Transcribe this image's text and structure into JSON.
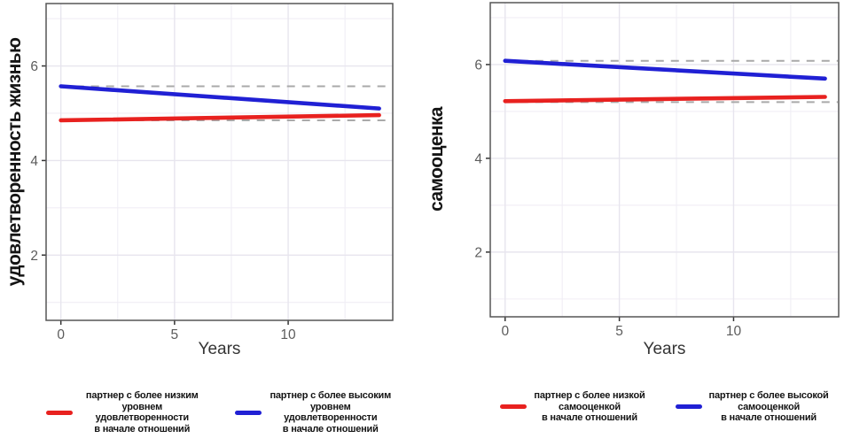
{
  "style": {
    "background": "#ffffff",
    "grid_major": "#e7e5ee",
    "grid_minor": "#f0eef5",
    "panel_border": "#565656",
    "ref_line": "#a9a9a9",
    "tick": "#333333",
    "tick_label": "#5c5c5c",
    "red": "#e8211f",
    "blue": "#2020d4"
  },
  "chart_data": [
    {
      "type": "line",
      "ylabel": "удовлетворенность жизнью",
      "xlabel": "Years",
      "x_ticks": [
        0,
        5,
        10
      ],
      "x_minor_ticks": [
        2.5,
        7.5,
        12.5
      ],
      "y_ticks": [
        2,
        4,
        6
      ],
      "y_minor_ticks": [
        1,
        3,
        5,
        7
      ],
      "xlim": [
        -0.65,
        14.6
      ],
      "ylim": [
        0.62,
        7.32
      ],
      "grid": true,
      "legend_position": "bottom",
      "series": [
        {
          "name": "партнер с более низким уровнем удовлетворенности в начале отношений",
          "color": "#e8211f",
          "x": [
            0,
            14
          ],
          "y": [
            4.85,
            4.96
          ]
        },
        {
          "name": "партнер с более высоким уровнем удовлетворенности в начале отношений",
          "color": "#2020d4",
          "x": [
            0,
            14
          ],
          "y": [
            5.57,
            5.1
          ]
        }
      ],
      "reference_lines": [
        {
          "y": 5.57,
          "style": "dashed"
        },
        {
          "y": 4.85,
          "style": "dashed"
        }
      ],
      "legend": [
        {
          "color": "#e8211f",
          "label": "партнер с более низким\nуровнем удовлетворенности\nв начале отношений"
        },
        {
          "color": "#2020d4",
          "label": "партнер с более высоким\nуровнем удовлетворенности\nв начале отношений"
        }
      ]
    },
    {
      "type": "line",
      "ylabel": "самооценка",
      "xlabel": "Years",
      "x_ticks": [
        0,
        5,
        10
      ],
      "x_minor_ticks": [
        2.5,
        7.5,
        12.5
      ],
      "y_ticks": [
        2,
        4,
        6
      ],
      "y_minor_ticks": [
        1,
        3,
        5,
        7
      ],
      "xlim": [
        -0.65,
        14.6
      ],
      "ylim": [
        0.62,
        7.32
      ],
      "grid": true,
      "legend_position": "bottom",
      "series": [
        {
          "name": "партнер с более низкой самооценкой в начале отношений",
          "color": "#e8211f",
          "x": [
            0,
            14
          ],
          "y": [
            5.22,
            5.31
          ]
        },
        {
          "name": "партнер с более высокой самооценкой в начале отношений",
          "color": "#2020d4",
          "x": [
            0,
            14
          ],
          "y": [
            6.08,
            5.7
          ]
        }
      ],
      "reference_lines": [
        {
          "y": 6.08,
          "style": "dashed"
        },
        {
          "y": 5.2,
          "style": "dashed"
        }
      ],
      "legend": [
        {
          "color": "#e8211f",
          "label": "партнер с более низкой\nсамооценкой\nв начале отношений"
        },
        {
          "color": "#2020d4",
          "label": "партнер с более высокой\nсамооценкой\nв начале отношений"
        }
      ]
    }
  ]
}
